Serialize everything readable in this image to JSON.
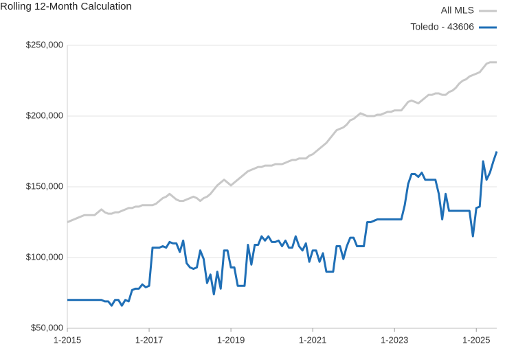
{
  "chart_data": {
    "type": "line",
    "title": "Rolling 12-Month Calculation",
    "categories": [
      "1-2015",
      null,
      null,
      null,
      null,
      null,
      null,
      null,
      null,
      null,
      null,
      null,
      null,
      null,
      null,
      null,
      null,
      null,
      null,
      null,
      null,
      null,
      null,
      null,
      "1-2017",
      null,
      null,
      null,
      null,
      null,
      null,
      null,
      null,
      null,
      null,
      null,
      null,
      null,
      null,
      null,
      null,
      null,
      null,
      null,
      null,
      null,
      null,
      null,
      "1-2019",
      null,
      null,
      null,
      null,
      null,
      null,
      null,
      null,
      null,
      null,
      null,
      null,
      null,
      null,
      null,
      null,
      null,
      null,
      null,
      null,
      null,
      null,
      null,
      "1-2021",
      null,
      null,
      null,
      null,
      null,
      null,
      null,
      null,
      null,
      null,
      null,
      null,
      null,
      null,
      null,
      null,
      null,
      null,
      null,
      null,
      null,
      null,
      null,
      "1-2023",
      null,
      null,
      null,
      null,
      null,
      null,
      null,
      null,
      null,
      null,
      null,
      null,
      null,
      null,
      null,
      null,
      null,
      null,
      null,
      null,
      null,
      null,
      null,
      "1-2025",
      null,
      null,
      null,
      null,
      null,
      null
    ],
    "series": [
      {
        "name": "All MLS",
        "color": "#c8c8c8",
        "values": [
          125000,
          126000,
          127000,
          128000,
          129000,
          130000,
          130000,
          130000,
          130000,
          132000,
          134000,
          132000,
          131000,
          131000,
          132000,
          132000,
          133000,
          134000,
          135000,
          135000,
          136000,
          136000,
          137000,
          137000,
          137000,
          137000,
          138000,
          140000,
          142000,
          143000,
          145000,
          143000,
          141000,
          140000,
          140000,
          141000,
          142000,
          143000,
          142000,
          140000,
          142000,
          143000,
          145000,
          148000,
          151000,
          153000,
          155000,
          153000,
          151000,
          153000,
          155000,
          157000,
          159000,
          161000,
          162000,
          163000,
          164000,
          164000,
          165000,
          165000,
          165000,
          166000,
          166000,
          166000,
          167000,
          168000,
          169000,
          169000,
          170000,
          170000,
          170000,
          172000,
          173000,
          175000,
          177000,
          179000,
          181000,
          184000,
          187000,
          190000,
          191000,
          192000,
          194000,
          197000,
          198000,
          200000,
          202000,
          201000,
          200000,
          200000,
          200000,
          201000,
          201000,
          202000,
          203000,
          203000,
          204000,
          204000,
          204000,
          207000,
          210000,
          211000,
          210000,
          209000,
          211000,
          213000,
          215000,
          215000,
          216000,
          216000,
          215000,
          215000,
          217000,
          218000,
          220000,
          223000,
          225000,
          226000,
          228000,
          229000,
          230000,
          231000,
          234000,
          237000,
          238000,
          238000,
          238000
        ]
      },
      {
        "name": "Toledo - 43606",
        "color": "#1f6fb6",
        "values": [
          70000,
          70000,
          70000,
          70000,
          70000,
          70000,
          70000,
          70000,
          70000,
          70000,
          70000,
          69000,
          69000,
          66000,
          70000,
          70000,
          66000,
          70000,
          69000,
          77000,
          78000,
          78000,
          81000,
          79000,
          80000,
          107000,
          107000,
          107000,
          108000,
          107000,
          111000,
          110000,
          110000,
          104000,
          112000,
          96000,
          93000,
          92000,
          93000,
          105000,
          99000,
          82000,
          88000,
          74000,
          90000,
          78000,
          105000,
          105000,
          93000,
          93000,
          80000,
          80000,
          80000,
          109000,
          95000,
          109000,
          109000,
          115000,
          112000,
          115000,
          111000,
          111000,
          112000,
          108000,
          112000,
          107000,
          107000,
          115000,
          108000,
          105000,
          110000,
          97000,
          105000,
          105000,
          97000,
          103000,
          90000,
          90000,
          90000,
          108000,
          108000,
          99000,
          108000,
          114000,
          114000,
          108000,
          108000,
          108000,
          125000,
          125000,
          126000,
          127000,
          127000,
          127000,
          127000,
          127000,
          127000,
          127000,
          127000,
          137000,
          152000,
          159000,
          159000,
          157000,
          160000,
          155000,
          155000,
          155000,
          155000,
          145000,
          127000,
          145000,
          133000,
          133000,
          133000,
          133000,
          133000,
          133000,
          133000,
          115000,
          135000,
          136000,
          168000,
          155000,
          160000,
          168000,
          175000
        ]
      }
    ],
    "ylim": [
      50000,
      250000
    ],
    "yticks": [
      {
        "value": 50000,
        "label": "$50,000"
      },
      {
        "value": 100000,
        "label": "$100,000"
      },
      {
        "value": 150000,
        "label": "$150,000"
      },
      {
        "value": 200000,
        "label": "$200,000"
      },
      {
        "value": 250000,
        "label": "$250,000"
      }
    ],
    "grid": true,
    "legend": "top-right"
  }
}
